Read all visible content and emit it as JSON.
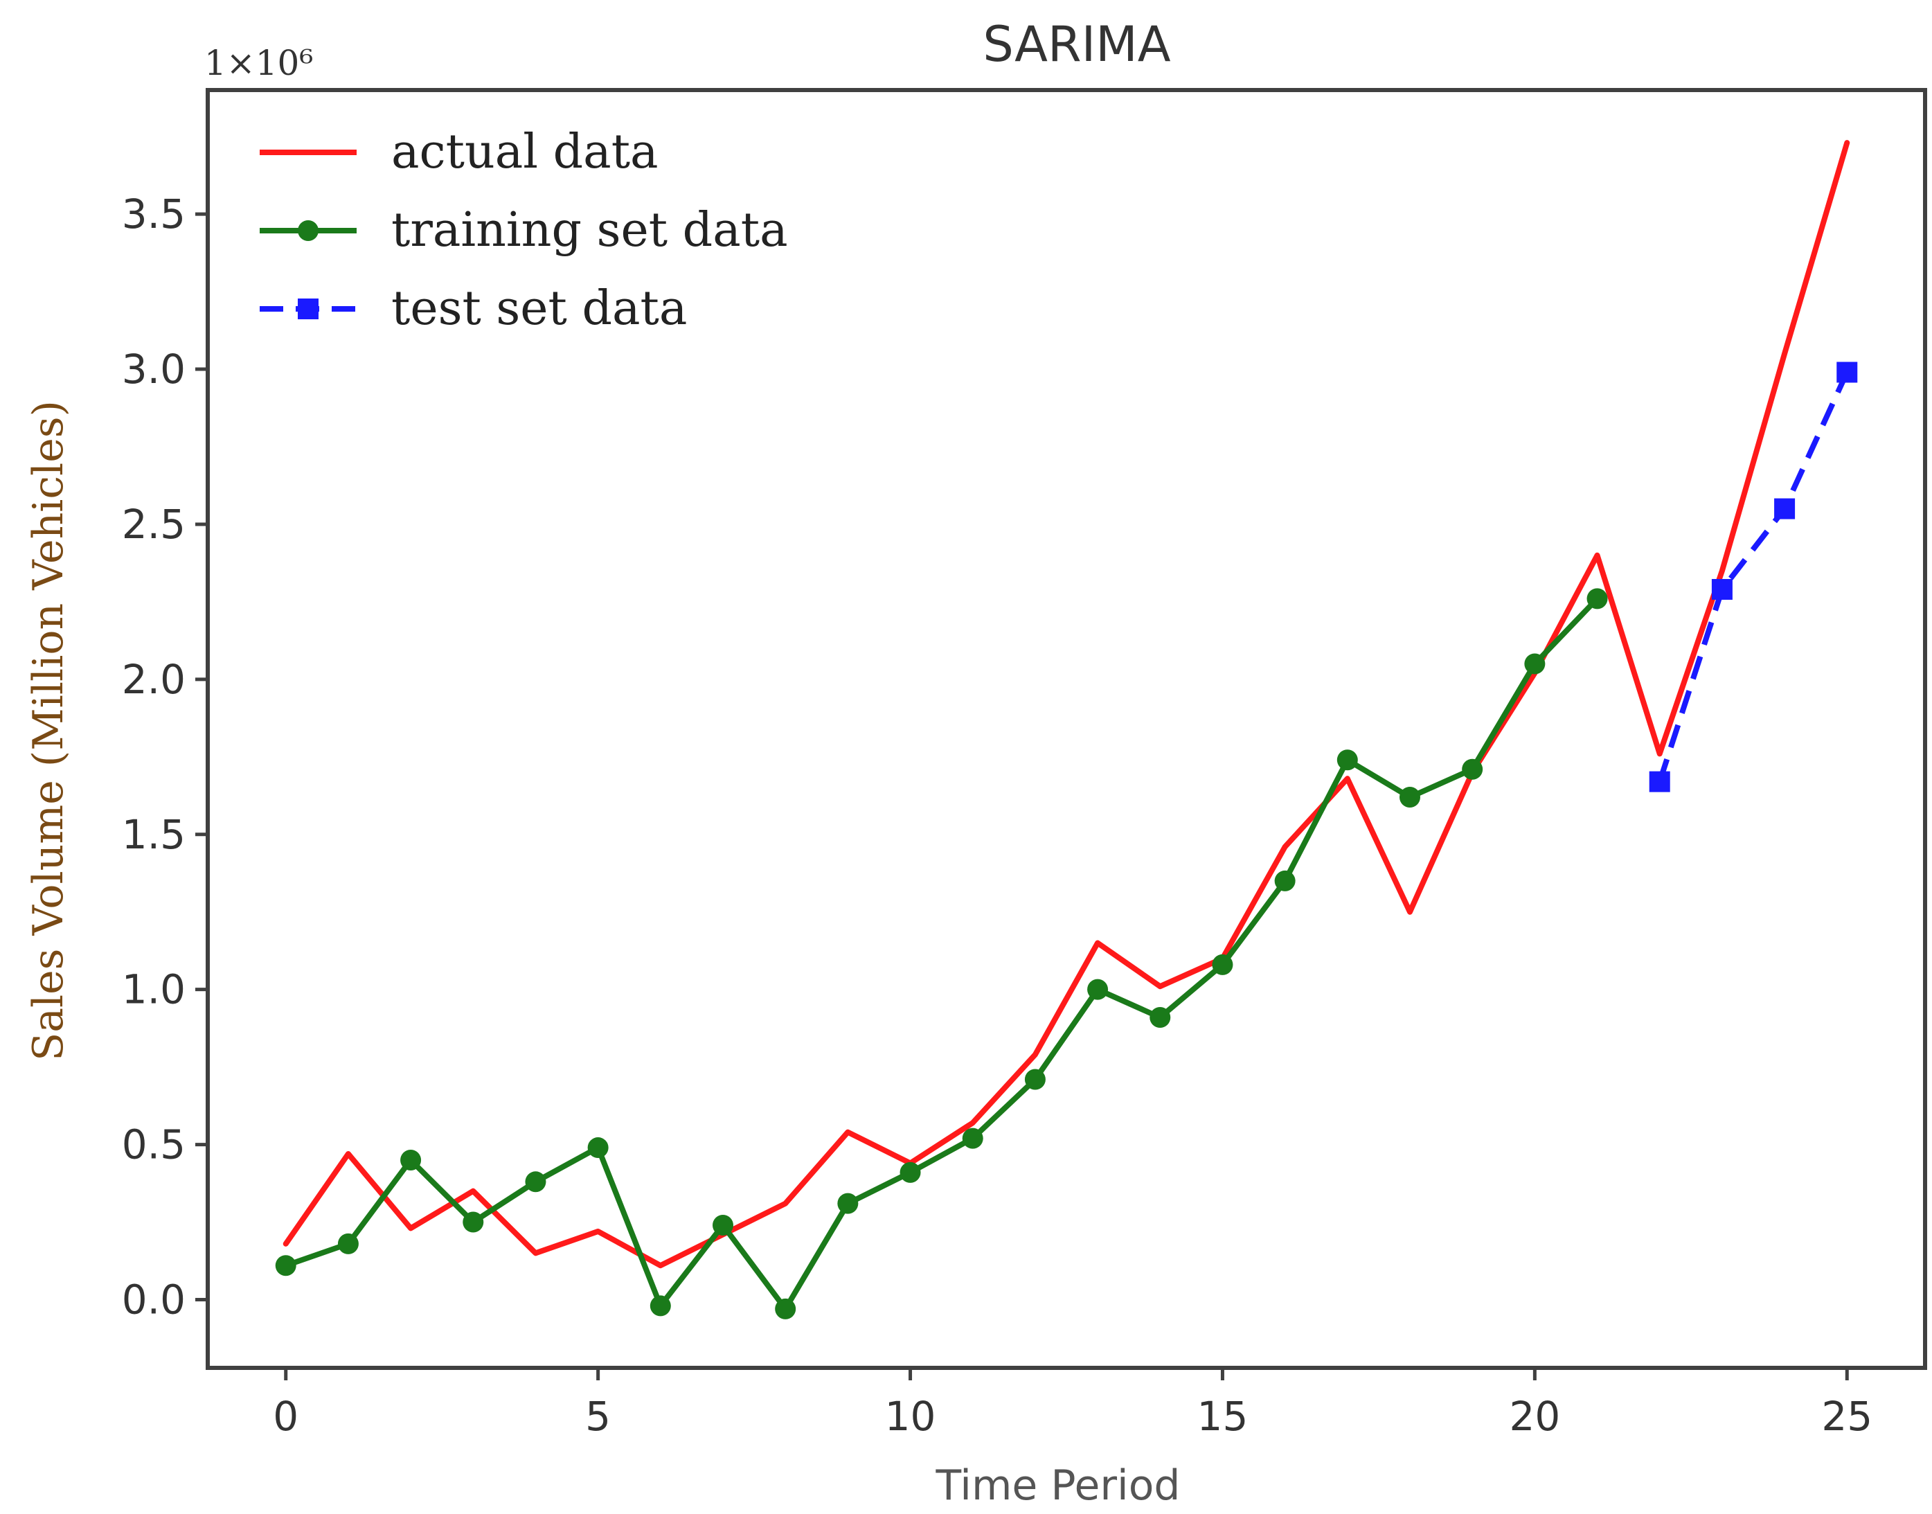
{
  "chart_data": {
    "type": "line",
    "title": "SARIMA",
    "xlabel": "Time Period",
    "ylabel": "Sales Volume (Million Vehicles)",
    "y_multiplier": "1×10⁶",
    "xlim": [
      -1.25,
      26.25
    ],
    "ylim": [
      -0.22,
      3.9
    ],
    "x_ticks": [
      0,
      5,
      10,
      15,
      20,
      25
    ],
    "x_tick_labels": [
      "0",
      "5",
      "10",
      "15",
      "20",
      "25"
    ],
    "y_ticks": [
      0.0,
      0.5,
      1.0,
      1.5,
      2.0,
      2.5,
      3.0,
      3.5
    ],
    "y_tick_labels": [
      "0.0",
      "0.5",
      "1.0",
      "1.5",
      "2.0",
      "2.5",
      "3.0",
      "3.5"
    ],
    "legend_position": "top-left",
    "grid": false,
    "series": [
      {
        "name": "actual data",
        "color": "#ff1a1a",
        "style": "solid",
        "marker": "none",
        "x": [
          0,
          1,
          2,
          3,
          4,
          5,
          6,
          7,
          8,
          9,
          10,
          11,
          12,
          13,
          14,
          15,
          16,
          17,
          18,
          19,
          20,
          21,
          22,
          23,
          24,
          25
        ],
        "y": [
          0.18,
          0.47,
          0.23,
          0.35,
          0.15,
          0.22,
          0.11,
          0.21,
          0.31,
          0.54,
          0.44,
          0.57,
          0.79,
          1.15,
          1.01,
          1.1,
          1.46,
          1.68,
          1.25,
          1.7,
          2.02,
          2.4,
          1.76,
          2.35,
          3.05,
          3.73
        ]
      },
      {
        "name": "training set data",
        "color": "#1a7a1a",
        "style": "solid",
        "marker": "circle",
        "x": [
          0,
          1,
          2,
          3,
          4,
          5,
          6,
          7,
          8,
          9,
          10,
          11,
          12,
          13,
          14,
          15,
          16,
          17,
          18,
          19,
          20,
          21
        ],
        "y": [
          0.11,
          0.18,
          0.45,
          0.25,
          0.38,
          0.49,
          -0.02,
          0.24,
          -0.03,
          0.31,
          0.41,
          0.52,
          0.71,
          1.0,
          0.91,
          1.08,
          1.35,
          1.74,
          1.62,
          1.71,
          2.05,
          2.26
        ]
      },
      {
        "name": "test set data",
        "color": "#1a1aff",
        "style": "dashed",
        "marker": "square",
        "x": [
          22,
          23,
          24,
          25
        ],
        "y": [
          1.67,
          2.29,
          2.55,
          2.99
        ]
      }
    ]
  }
}
